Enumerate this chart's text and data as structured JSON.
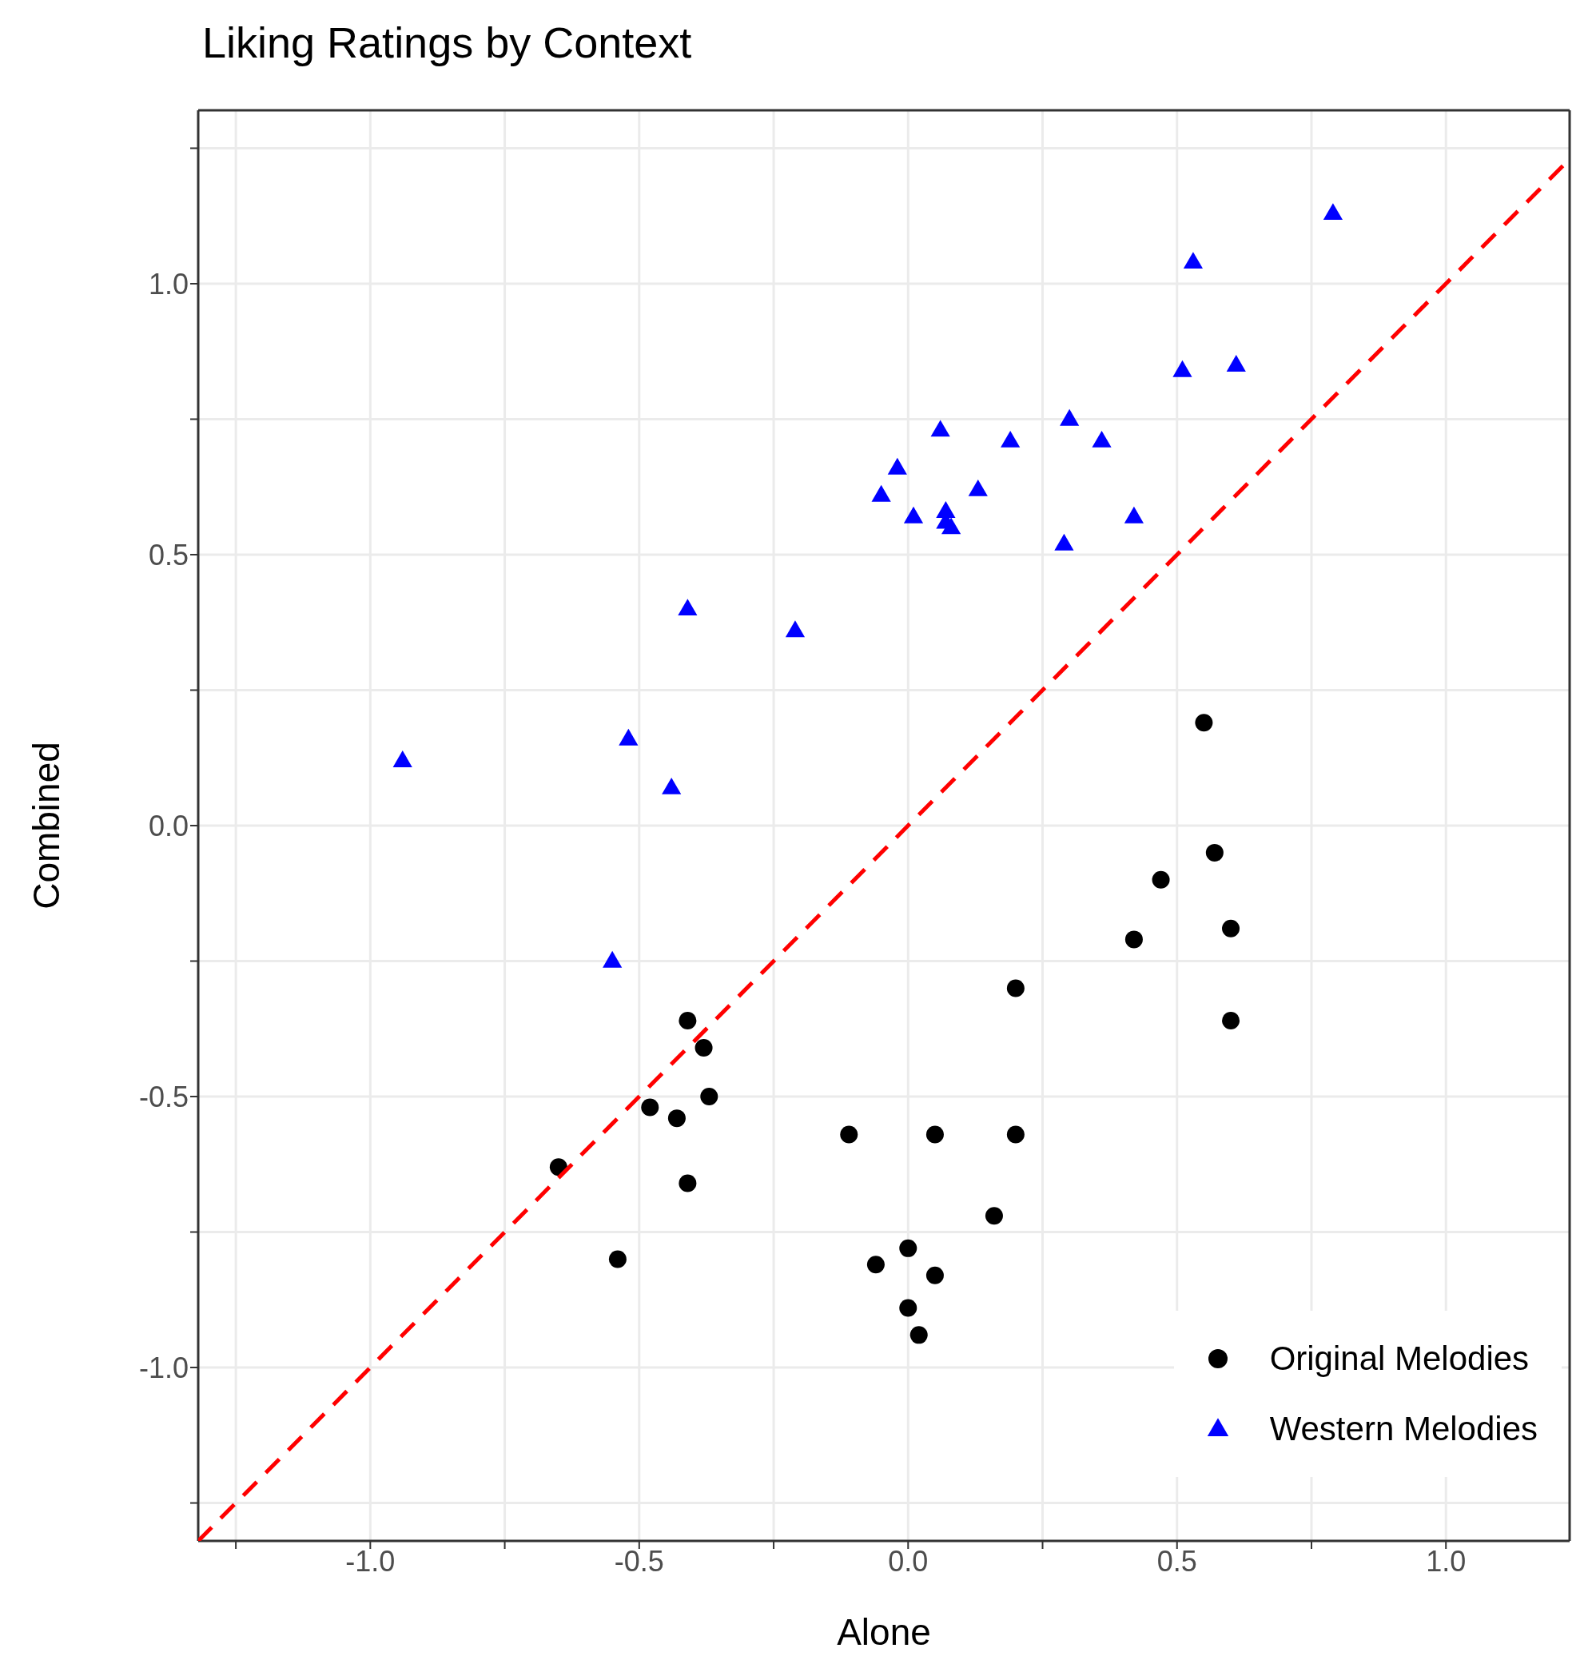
{
  "chart_data": {
    "type": "scatter",
    "title": "Liking Ratings by Context",
    "xlabel": "Alone",
    "ylabel": "Combined",
    "xlim": [
      -1.32,
      1.23
    ],
    "ylim": [
      -1.32,
      1.32
    ],
    "xticks": [
      {
        "value": -1.25,
        "label": null
      },
      {
        "value": -1,
        "label": "-1.0"
      },
      {
        "value": -0.75,
        "label": null
      },
      -0.5,
      {
        "value": -0.25,
        "label": null
      },
      {
        "value": 0,
        "label": "0.0"
      },
      {
        "value": 0.25,
        "label": null
      },
      0.5,
      {
        "value": 0.75,
        "label": null
      },
      {
        "value": 1,
        "label": "1.0"
      }
    ],
    "yticks": [
      {
        "value": -1.25,
        "label": null
      },
      {
        "value": -1,
        "label": "-1.0"
      },
      {
        "value": -0.75,
        "label": null
      },
      -0.5,
      {
        "value": -0.25,
        "label": null
      },
      {
        "value": 0,
        "label": "0.0"
      },
      {
        "value": 0.25,
        "label": null
      },
      0.5,
      {
        "value": 0.75,
        "label": null
      },
      {
        "value": 1,
        "label": "1.0"
      },
      {
        "value": 1.25,
        "label": null
      }
    ],
    "grid": true,
    "legend": "bottom right",
    "series": [
      {
        "name": "Original Melodies",
        "color": "#000000",
        "marker": "circle",
        "x": [
          0.55,
          0.57,
          0.47,
          0.42,
          0.6,
          0.6,
          0.2,
          -0.41,
          -0.38,
          -0.37,
          -0.48,
          -0.43,
          -0.65,
          -0.41,
          -0.54,
          -0.11,
          0.05,
          0.2,
          0.16,
          0.0,
          -0.06,
          0.05,
          0.0,
          0.02
        ],
        "values": [
          0.19,
          -0.05,
          -0.1,
          -0.21,
          -0.19,
          -0.36,
          -0.3,
          -0.36,
          -0.41,
          -0.5,
          -0.52,
          -0.54,
          -0.63,
          -0.66,
          -0.8,
          -0.57,
          -0.57,
          -0.57,
          -0.72,
          -0.78,
          -0.81,
          -0.83,
          -0.89,
          -0.94
        ]
      },
      {
        "name": "Western Melodies",
        "color": "#0000ff",
        "marker": "triangle",
        "x": [
          0.79,
          0.53,
          0.61,
          0.51,
          0.3,
          0.36,
          0.19,
          0.06,
          -0.02,
          -0.05,
          0.13,
          0.01,
          0.07,
          0.07,
          0.08,
          0.42,
          0.29,
          -0.41,
          -0.21,
          -0.52,
          -0.94,
          -0.44,
          -0.55
        ],
        "values": [
          1.13,
          1.04,
          0.85,
          0.84,
          0.75,
          0.71,
          0.71,
          0.73,
          0.66,
          0.61,
          0.62,
          0.57,
          0.58,
          0.56,
          0.55,
          0.57,
          0.52,
          0.4,
          0.36,
          0.16,
          0.12,
          0.07,
          -0.25
        ]
      },
      {
        "type": "line",
        "color": "#ff0000",
        "line_style": "dashed",
        "marker": "none",
        "x": [
          -1.32,
          1.23
        ],
        "values": [
          -1.32,
          1.23
        ]
      }
    ]
  }
}
